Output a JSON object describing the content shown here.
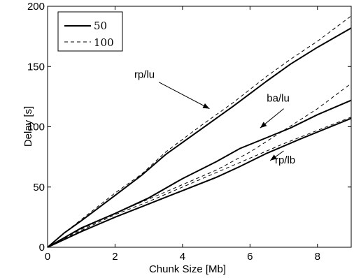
{
  "chart_data": {
    "type": "line",
    "title": "",
    "xlabel": "Chunk Size [Mb]",
    "ylabel": "Delay [s]",
    "xlim": [
      0,
      9
    ],
    "ylim": [
      0,
      200
    ],
    "xticks": [
      0,
      2,
      4,
      6,
      8
    ],
    "yticks": [
      0,
      50,
      100,
      150,
      200
    ],
    "xtick_labels": [
      "0",
      "2",
      "4",
      "6",
      "8"
    ],
    "ytick_labels": [
      "0",
      "50",
      "100",
      "150",
      "200"
    ],
    "grid": false,
    "legend": {
      "placement": "top-left",
      "entries": [
        {
          "label": "50",
          "style": "solid"
        },
        {
          "label": "100",
          "style": "dashed"
        }
      ]
    },
    "series": [
      {
        "group": "rp/lu",
        "legend": "50",
        "style": "solid",
        "points": [
          [
            0,
            0
          ],
          [
            0.5,
            12
          ],
          [
            1,
            22
          ],
          [
            2,
            43
          ],
          [
            2.8,
            60
          ],
          [
            3.5,
            77
          ],
          [
            4.5,
            97
          ],
          [
            5.5,
            117
          ],
          [
            6.5,
            138
          ],
          [
            7.2,
            152
          ],
          [
            8,
            166
          ],
          [
            9,
            182
          ]
        ]
      },
      {
        "group": "rp/lu",
        "legend": "100",
        "style": "dashed",
        "points": [
          [
            0,
            0
          ],
          [
            0.5,
            12
          ],
          [
            1,
            23
          ],
          [
            2,
            45
          ],
          [
            2.8,
            61
          ],
          [
            3.5,
            79
          ],
          [
            4.5,
            100
          ],
          [
            5.5,
            120
          ],
          [
            6.5,
            142
          ],
          [
            7.2,
            156
          ],
          [
            8,
            171
          ],
          [
            9,
            192
          ]
        ]
      },
      {
        "group": "ba/lu",
        "legend": "50",
        "style": "solid",
        "points": [
          [
            0,
            0
          ],
          [
            1,
            16
          ],
          [
            2,
            28
          ],
          [
            3,
            41
          ],
          [
            4,
            57
          ],
          [
            5,
            71
          ],
          [
            5.7,
            82
          ],
          [
            6.5,
            91
          ],
          [
            7.2,
            99
          ],
          [
            8,
            110
          ],
          [
            9,
            122
          ]
        ]
      },
      {
        "group": "ba/lu",
        "legend": "100",
        "style": "dashed",
        "points": [
          [
            0,
            0
          ],
          [
            1,
            15
          ],
          [
            2,
            28
          ],
          [
            3,
            40
          ],
          [
            4,
            52
          ],
          [
            5,
            64
          ],
          [
            6,
            79
          ],
          [
            7,
            97
          ],
          [
            8,
            115
          ],
          [
            9,
            136
          ]
        ]
      },
      {
        "group": "rp/lb",
        "legend": "50",
        "style": "solid",
        "points": [
          [
            0,
            0
          ],
          [
            1,
            13
          ],
          [
            2,
            25
          ],
          [
            3,
            36
          ],
          [
            4,
            47
          ],
          [
            5,
            58
          ],
          [
            5.7,
            67
          ],
          [
            6.5,
            78
          ],
          [
            7.5,
            90
          ],
          [
            8.3,
            99
          ],
          [
            9,
            107
          ]
        ]
      },
      {
        "group": "rp/lb",
        "legend": "100",
        "style": "dashed",
        "points": [
          [
            0,
            0
          ],
          [
            1,
            14
          ],
          [
            2,
            27
          ],
          [
            3,
            38
          ],
          [
            4,
            50
          ],
          [
            5,
            62
          ],
          [
            6,
            74
          ],
          [
            7,
            86
          ],
          [
            8,
            97
          ],
          [
            9,
            108
          ]
        ]
      }
    ],
    "annotations": [
      {
        "text": "rp/lu",
        "arrow_from": [
          3.3,
          137
        ],
        "arrow_to": [
          4.8,
          115
        ]
      },
      {
        "text": "ba/lu",
        "arrow_from": [
          7.0,
          115
        ],
        "arrow_to": [
          6.3,
          99
        ]
      },
      {
        "text": "rp/lb",
        "arrow_from": [
          7.0,
          80
        ],
        "arrow_to": [
          6.6,
          72
        ]
      }
    ]
  }
}
